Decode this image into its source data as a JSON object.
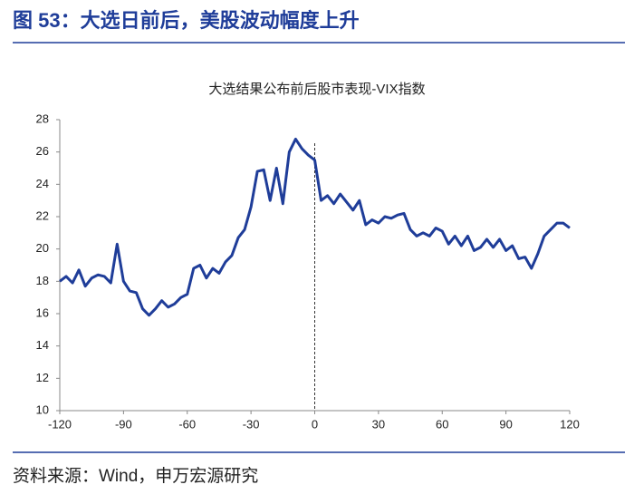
{
  "header": "图 53：大选日前后，美股波动幅度上升",
  "source": "资料来源：Wind，申万宏源研究",
  "chart_data": {
    "type": "line",
    "title": "大选结果公布前后股市表现-VIX指数",
    "x": [
      -120,
      -117,
      -114,
      -111,
      -108,
      -105,
      -102,
      -99,
      -96,
      -93,
      -90,
      -87,
      -84,
      -81,
      -78,
      -75,
      -72,
      -69,
      -66,
      -63,
      -60,
      -57,
      -54,
      -51,
      -48,
      -45,
      -42,
      -39,
      -36,
      -33,
      -30,
      -27,
      -24,
      -21,
      -18,
      -15,
      -12,
      -9,
      -6,
      -3,
      0,
      3,
      6,
      9,
      12,
      15,
      18,
      21,
      24,
      27,
      30,
      33,
      36,
      39,
      42,
      45,
      48,
      51,
      54,
      57,
      60,
      63,
      66,
      69,
      72,
      75,
      78,
      81,
      84,
      87,
      90,
      93,
      96,
      99,
      102,
      105,
      108,
      111,
      114,
      117,
      120
    ],
    "series": [
      {
        "name": "VIX",
        "color": "#1f3d99",
        "values": [
          18.0,
          18.3,
          17.9,
          18.7,
          17.7,
          18.2,
          18.4,
          18.3,
          17.9,
          20.3,
          18.0,
          17.4,
          17.3,
          16.3,
          15.9,
          16.3,
          16.8,
          16.4,
          16.6,
          17.0,
          17.2,
          18.8,
          19.0,
          18.2,
          18.8,
          18.5,
          19.2,
          19.6,
          20.7,
          21.2,
          22.6,
          24.8,
          24.9,
          23.0,
          25.0,
          22.8,
          26.0,
          26.8,
          26.2,
          25.8,
          25.5,
          23.0,
          23.3,
          22.8,
          23.4,
          22.9,
          22.4,
          23.0,
          21.5,
          21.8,
          21.6,
          22.0,
          21.9,
          22.1,
          22.2,
          21.2,
          20.8,
          21.0,
          20.8,
          21.3,
          21.1,
          20.3,
          20.8,
          20.2,
          20.8,
          19.9,
          20.1,
          20.6,
          20.1,
          20.6,
          19.9,
          20.2,
          19.4,
          19.5,
          18.8,
          19.7,
          20.8,
          21.2,
          21.6,
          21.6,
          21.3
        ]
      }
    ],
    "xlim": [
      -120,
      120
    ],
    "xticks": [
      -120,
      -90,
      -60,
      -30,
      0,
      30,
      60,
      90,
      120
    ],
    "ylim": [
      10,
      28
    ],
    "yticks": [
      10,
      12,
      14,
      16,
      18,
      20,
      22,
      24,
      26,
      28
    ],
    "vline": 0
  }
}
